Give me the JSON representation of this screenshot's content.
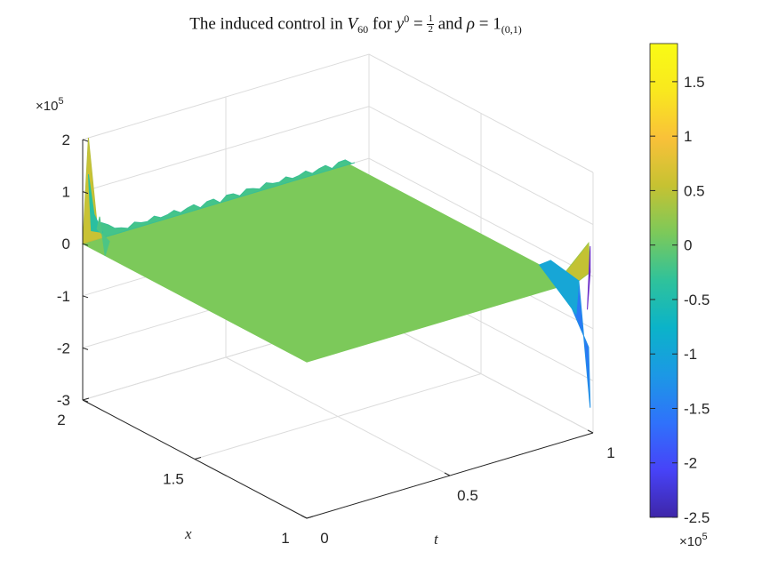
{
  "title": {
    "prefix": "The induced control in ",
    "var": "V",
    "var_sub": "60",
    "mid": " for ",
    "y_var": "y",
    "y_sup": "0",
    "eq": " = ",
    "frac_num": "1",
    "frac_den": "2",
    "and": " and ",
    "rho": "ρ",
    "eq2": " = ",
    "ind": "1",
    "ind_sub": "(0,1)"
  },
  "chart_data": {
    "type": "surface",
    "title": "The induced control in V_60 for y^0 = 1/2 and ρ = 1_(0,1)",
    "xlabel": "x",
    "ylabel": "t",
    "zlabel": "",
    "x_range": [
      1,
      2
    ],
    "t_range": [
      0,
      1
    ],
    "z_range": [
      -3,
      2
    ],
    "z_exponent_label": "×10",
    "z_exponent_sup": "5",
    "x_ticks": [
      "1",
      "1.5",
      "2"
    ],
    "t_ticks": [
      "0",
      "0.5",
      "1"
    ],
    "z_ticks": [
      "2",
      "1",
      "0",
      "-1",
      "-2",
      "-3"
    ],
    "grid": true,
    "surface_description": [
      {
        "region": "t in [0, 0.95]",
        "value_approx": 0
      },
      {
        "region": "x = 2, t near 0",
        "peak_value_approx": 2.0
      },
      {
        "region": "x = 2, t near 0",
        "secondary_peak_approx": 0.6
      },
      {
        "region": "x = 1, t near 1",
        "max_approx": 0.6,
        "min_approx": -2.5
      }
    ],
    "colorbar": {
      "ticks": [
        "1.5",
        "1",
        "0.5",
        "0",
        "-0.5",
        "-1",
        "-1.5",
        "-2",
        "-2.5"
      ],
      "range": [
        -2.5,
        1.85
      ],
      "exponent_label": "×10",
      "exponent_sup": "5",
      "colormap": "parula",
      "colors": [
        "#3e26a8",
        "#4743f8",
        "#2f72fb",
        "#1c98e5",
        "#0bb3c9",
        "#2fc29b",
        "#7cc95a",
        "#c6c232",
        "#f9c139",
        "#f9e81e",
        "#f9fb15"
      ]
    }
  }
}
